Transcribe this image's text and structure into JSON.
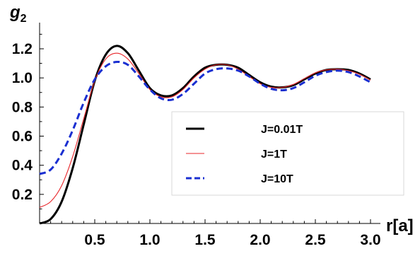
{
  "chart_data": {
    "type": "line",
    "ylabel": "g",
    "ylabel_sub": "2",
    "xlabel": "r[a]",
    "xlim": [
      0,
      3.05
    ],
    "ylim": [
      0,
      1.38
    ],
    "xticks": [
      0.5,
      1.0,
      1.5,
      2.0,
      2.5,
      3.0
    ],
    "xtick_labels": [
      "0.5",
      "1.0",
      "1.5",
      "2.0",
      "2.5",
      "3.0"
    ],
    "yticks": [
      0.2,
      0.4,
      0.6,
      0.8,
      1.0,
      1.2
    ],
    "ytick_labels": [
      "0.2",
      "0.4",
      "0.6",
      "0.8",
      "1.0",
      "1.2"
    ],
    "grid": false,
    "legend_position": "bottom-right",
    "series": [
      {
        "name": "J=0.01T",
        "color": "#000000",
        "style": "solid-thick",
        "x": [
          0,
          0.1,
          0.2,
          0.3,
          0.4,
          0.5,
          0.6,
          0.7,
          0.8,
          0.9,
          1.0,
          1.1,
          1.2,
          1.3,
          1.4,
          1.5,
          1.6,
          1.7,
          1.8,
          1.9,
          2.0,
          2.1,
          2.2,
          2.3,
          2.4,
          2.5,
          2.6,
          2.7,
          2.8,
          2.9,
          3.0
        ],
        "y": [
          0.0,
          0.03,
          0.15,
          0.38,
          0.68,
          0.98,
          1.16,
          1.22,
          1.17,
          1.05,
          0.93,
          0.88,
          0.88,
          0.93,
          1.01,
          1.07,
          1.09,
          1.09,
          1.07,
          1.02,
          0.97,
          0.94,
          0.935,
          0.95,
          0.99,
          1.03,
          1.055,
          1.06,
          1.055,
          1.03,
          0.99
        ]
      },
      {
        "name": "J=1T",
        "color": "#e8262a",
        "style": "solid-thin",
        "x": [
          0,
          0.1,
          0.2,
          0.3,
          0.4,
          0.5,
          0.6,
          0.7,
          0.8,
          0.9,
          1.0,
          1.1,
          1.2,
          1.3,
          1.4,
          1.5,
          1.6,
          1.7,
          1.8,
          1.9,
          2.0,
          2.1,
          2.2,
          2.3,
          2.4,
          2.5,
          2.6,
          2.7,
          2.8,
          2.9,
          3.0
        ],
        "y": [
          0.11,
          0.15,
          0.26,
          0.46,
          0.72,
          0.98,
          1.13,
          1.17,
          1.13,
          1.03,
          0.92,
          0.87,
          0.87,
          0.92,
          1.0,
          1.06,
          1.09,
          1.09,
          1.06,
          1.01,
          0.96,
          0.935,
          0.935,
          0.955,
          0.995,
          1.035,
          1.055,
          1.06,
          1.05,
          1.025,
          0.985
        ]
      },
      {
        "name": "J=10T",
        "color": "#1a2fd1",
        "style": "dashed-thick",
        "x": [
          0,
          0.1,
          0.2,
          0.3,
          0.4,
          0.5,
          0.6,
          0.7,
          0.8,
          0.9,
          1.0,
          1.1,
          1.2,
          1.3,
          1.4,
          1.5,
          1.6,
          1.7,
          1.8,
          1.9,
          2.0,
          2.1,
          2.2,
          2.3,
          2.4,
          2.5,
          2.6,
          2.7,
          2.8,
          2.9,
          3.0
        ],
        "y": [
          0.34,
          0.37,
          0.48,
          0.64,
          0.83,
          0.99,
          1.08,
          1.11,
          1.09,
          1.01,
          0.92,
          0.86,
          0.85,
          0.89,
          0.96,
          1.03,
          1.06,
          1.065,
          1.05,
          1.01,
          0.96,
          0.925,
          0.915,
          0.93,
          0.97,
          1.015,
          1.04,
          1.05,
          1.04,
          1.01,
          0.97
        ]
      }
    ]
  }
}
